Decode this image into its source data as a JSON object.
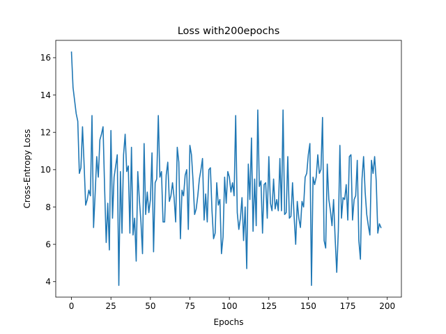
{
  "chart_data": {
    "type": "line",
    "title": "Loss with200epochs",
    "xlabel": "Epochs",
    "ylabel": "Cross-Entropy Loss",
    "xlim": [
      -9.95,
      208.95
    ],
    "ylim": [
      3.17,
      16.93
    ],
    "xticks": [
      0,
      25,
      50,
      75,
      100,
      125,
      150,
      175,
      200
    ],
    "yticks": [
      4,
      6,
      8,
      10,
      12,
      14,
      16
    ],
    "grid": false,
    "legend": "none",
    "series": [
      {
        "color": "#1f77b4",
        "x_start": 0,
        "x_step": 1,
        "values": [
          16.3,
          14.4,
          13.7,
          13.0,
          12.6,
          9.8,
          10.1,
          12.3,
          10.3,
          8.1,
          8.4,
          8.9,
          8.6,
          12.9,
          6.9,
          8.7,
          10.7,
          9.6,
          11.6,
          11.9,
          12.3,
          9.0,
          6.1,
          8.2,
          5.7,
          12.1,
          7.4,
          9.6,
          10.2,
          10.8,
          3.8,
          9.9,
          6.6,
          10.8,
          11.9,
          9.9,
          10.2,
          6.6,
          11.2,
          6.5,
          7.4,
          5.1,
          9.9,
          8.4,
          7.2,
          5.5,
          11.4,
          7.6,
          8.8,
          7.7,
          8.4,
          10.9,
          5.6,
          9.3,
          9.5,
          12.9,
          9.6,
          9.9,
          7.2,
          7.2,
          9.7,
          10.4,
          8.3,
          8.6,
          9.3,
          8.5,
          7.2,
          11.2,
          10.4,
          6.3,
          8.9,
          8.6,
          9.7,
          10.0,
          6.8,
          11.3,
          10.8,
          9.4,
          7.6,
          7.9,
          8.6,
          9.5,
          10.0,
          10.6,
          7.3,
          8.7,
          7.2,
          10.0,
          10.1,
          7.8,
          6.3,
          6.6,
          9.3,
          8.1,
          8.4,
          5.5,
          6.4,
          9.6,
          8.2,
          9.9,
          9.6,
          8.8,
          9.3,
          8.6,
          12.9,
          7.7,
          6.8,
          7.4,
          8.5,
          6.2,
          8.0,
          4.7,
          10.3,
          8.4,
          11.7,
          6.7,
          9.5,
          7.0,
          13.2,
          9.1,
          9.4,
          6.6,
          9.2,
          9.3,
          7.4,
          10.7,
          8.2,
          7.8,
          9.5,
          7.9,
          8.4,
          7.8,
          10.6,
          7.8,
          13.2,
          7.6,
          7.7,
          10.7,
          7.4,
          7.5,
          9.3,
          7.5,
          6.0,
          8.3,
          7.4,
          6.9,
          8.3,
          8.0,
          9.6,
          9.8,
          10.8,
          11.4,
          3.8,
          9.6,
          9.2,
          9.6,
          10.8,
          9.8,
          10.0,
          12.8,
          6.2,
          5.8,
          10.3,
          8.4,
          7.8,
          7.0,
          8.4,
          6.3,
          4.5,
          6.7,
          11.3,
          7.4,
          8.5,
          8.4,
          9.2,
          7.3,
          10.7,
          10.8,
          7.3,
          8.4,
          8.6,
          10.5,
          6.2,
          5.2,
          9.5,
          10.7,
          8.8,
          7.6,
          7.0,
          6.5,
          10.5,
          9.8,
          10.7,
          9.4,
          6.6,
          7.1,
          6.9
        ]
      }
    ]
  }
}
